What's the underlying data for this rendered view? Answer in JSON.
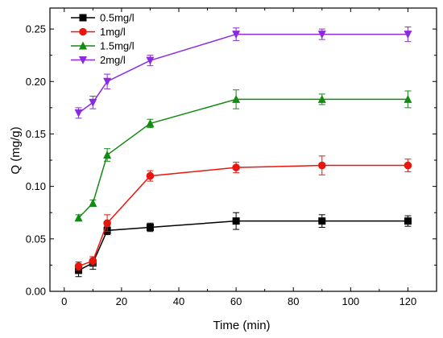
{
  "chart_data": {
    "type": "line",
    "xlabel": "Time (min)",
    "ylabel": "Q (mg/g)",
    "xlim": [
      -5,
      130
    ],
    "ylim": [
      0.0,
      0.27
    ],
    "xticks": [
      0,
      20,
      40,
      60,
      80,
      100,
      120
    ],
    "yticks": [
      0.0,
      0.05,
      0.1,
      0.15,
      0.2,
      0.25
    ],
    "ytick_labels": [
      "0.00",
      "0.05",
      "0.10",
      "0.15",
      "0.20",
      "0.25"
    ],
    "grid": false,
    "legend_position": "top-left",
    "x": [
      5,
      10,
      15,
      30,
      60,
      90,
      120
    ],
    "series": [
      {
        "name": "0.5mg/l",
        "color": "#000000",
        "marker": "square",
        "values": [
          0.02,
          0.027,
          0.058,
          0.061,
          0.067,
          0.067,
          0.067
        ],
        "errors": [
          0.006,
          0.006,
          0.004,
          0.004,
          0.008,
          0.006,
          0.005
        ]
      },
      {
        "name": "1mg/l",
        "color": "#e8170e",
        "marker": "circle",
        "values": [
          0.024,
          0.029,
          0.065,
          0.11,
          0.118,
          0.12,
          0.12
        ],
        "errors": [
          0.004,
          0.004,
          0.008,
          0.005,
          0.005,
          0.009,
          0.006
        ]
      },
      {
        "name": "1.5mg/l",
        "color": "#138a13",
        "marker": "triangle-up",
        "values": [
          0.07,
          0.084,
          0.13,
          0.16,
          0.183,
          0.183,
          0.183
        ],
        "errors": [
          0.003,
          0.003,
          0.006,
          0.004,
          0.009,
          0.005,
          0.008
        ]
      },
      {
        "name": "2mg/l",
        "color": "#8a2be2",
        "marker": "triangle-down",
        "values": [
          0.17,
          0.18,
          0.2,
          0.22,
          0.245,
          0.245,
          0.245
        ],
        "errors": [
          0.005,
          0.006,
          0.007,
          0.005,
          0.006,
          0.005,
          0.007
        ]
      }
    ]
  }
}
